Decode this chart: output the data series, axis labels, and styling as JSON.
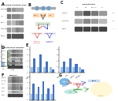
{
  "bg_color": "#ffffff",
  "gel_bg": "#d8d8d8",
  "gel_bg2": "#e8e8e8",
  "bar_blue": "#4472c4",
  "bar_lightblue": "#9dc3e6",
  "bar_green": "#548235",
  "bar_darkblue": "#1f3864",
  "bar_teal": "#17a589",
  "bar_pink": "#e8a0a0",
  "label_color": "#222222",
  "band_dark": "#333333",
  "band_med": "#777777",
  "band_light": "#aaaaaa",
  "band_vlight": "#cccccc",
  "white": "#ffffff",
  "panel_labels": [
    "A",
    "B",
    "C",
    "D",
    "E",
    "F",
    "G"
  ],
  "title_A": "IRF3/NFκB signaling axes",
  "title_C": "Translational",
  "title_D": "Dysfunction markers",
  "title_F": "PRDM16"
}
